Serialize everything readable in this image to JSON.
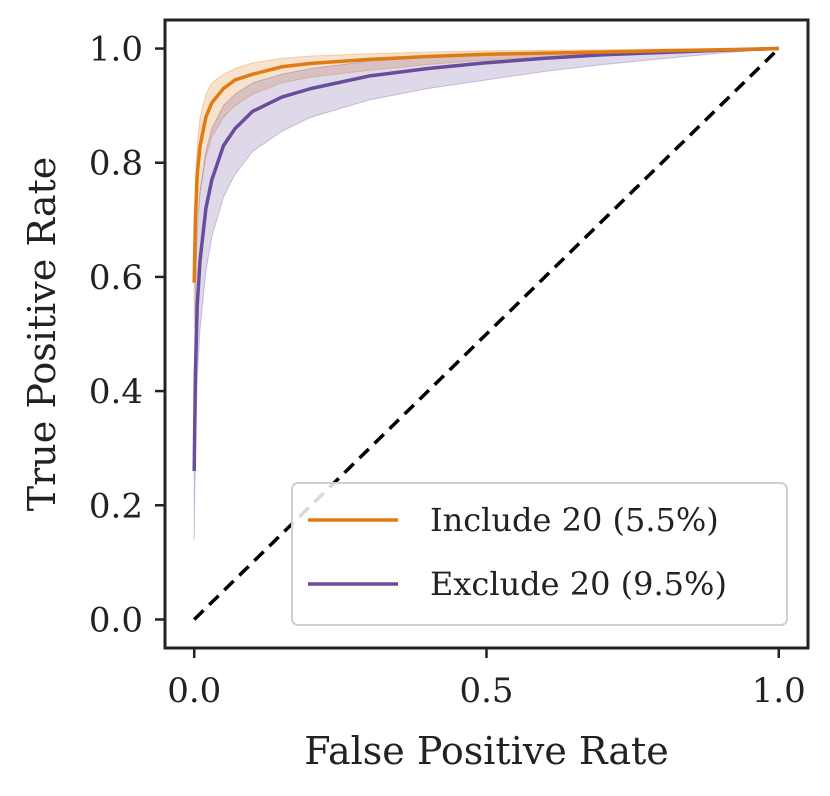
{
  "chart_data": {
    "type": "line",
    "title": "",
    "xlabel": "False Positive Rate",
    "ylabel": "True Positive Rate",
    "xlim": [
      -0.05,
      1.05
    ],
    "ylim": [
      -0.05,
      1.05
    ],
    "xticks": [
      0.0,
      0.5,
      1.0
    ],
    "xtick_labels": [
      "0.0",
      "0.5",
      "1.0"
    ],
    "yticks": [
      0.0,
      0.2,
      0.4,
      0.6,
      0.8,
      1.0
    ],
    "ytick_labels": [
      "0.0",
      "0.2",
      "0.4",
      "0.6",
      "0.8",
      "1.0"
    ],
    "grid": false,
    "legend_position": "lower-right",
    "reference_line": {
      "x": [
        0,
        1
      ],
      "y": [
        0,
        1
      ],
      "style": "dashed",
      "color": "#000000"
    },
    "series": [
      {
        "name": "Include 20 (5.5%)",
        "color": "#e07b14",
        "x": [
          0,
          0.002,
          0.005,
          0.01,
          0.02,
          0.03,
          0.05,
          0.07,
          0.1,
          0.15,
          0.2,
          0.3,
          0.4,
          0.5,
          0.6,
          0.7,
          0.8,
          0.9,
          1.0
        ],
        "y": [
          0.59,
          0.7,
          0.78,
          0.83,
          0.88,
          0.905,
          0.93,
          0.945,
          0.955,
          0.968,
          0.974,
          0.981,
          0.986,
          0.99,
          0.992,
          0.994,
          0.996,
          0.998,
          1.0
        ],
        "upper": [
          0.64,
          0.76,
          0.83,
          0.88,
          0.92,
          0.94,
          0.955,
          0.965,
          0.975,
          0.983,
          0.987,
          0.991,
          0.994,
          0.996,
          0.997,
          0.998,
          0.999,
          0.999,
          1.0
        ],
        "lower": [
          0.51,
          0.62,
          0.7,
          0.75,
          0.81,
          0.845,
          0.88,
          0.9,
          0.92,
          0.94,
          0.95,
          0.962,
          0.972,
          0.98,
          0.985,
          0.989,
          0.992,
          0.996,
          1.0
        ]
      },
      {
        "name": "Exclude 20 (9.5%)",
        "color": "#6a4c9c",
        "x": [
          0,
          0.002,
          0.005,
          0.01,
          0.02,
          0.03,
          0.05,
          0.07,
          0.1,
          0.15,
          0.2,
          0.3,
          0.4,
          0.5,
          0.6,
          0.7,
          0.8,
          0.9,
          1.0
        ],
        "y": [
          0.26,
          0.43,
          0.55,
          0.63,
          0.72,
          0.77,
          0.83,
          0.86,
          0.89,
          0.915,
          0.93,
          0.952,
          0.965,
          0.975,
          0.983,
          0.989,
          0.993,
          0.997,
          1.0
        ],
        "upper": [
          0.4,
          0.58,
          0.68,
          0.75,
          0.82,
          0.86,
          0.9,
          0.92,
          0.94,
          0.955,
          0.965,
          0.978,
          0.985,
          0.99,
          0.993,
          0.995,
          0.997,
          0.999,
          1.0
        ],
        "lower": [
          0.14,
          0.3,
          0.42,
          0.51,
          0.61,
          0.67,
          0.74,
          0.78,
          0.82,
          0.855,
          0.88,
          0.91,
          0.93,
          0.945,
          0.96,
          0.972,
          0.982,
          0.992,
          1.0
        ]
      }
    ]
  }
}
